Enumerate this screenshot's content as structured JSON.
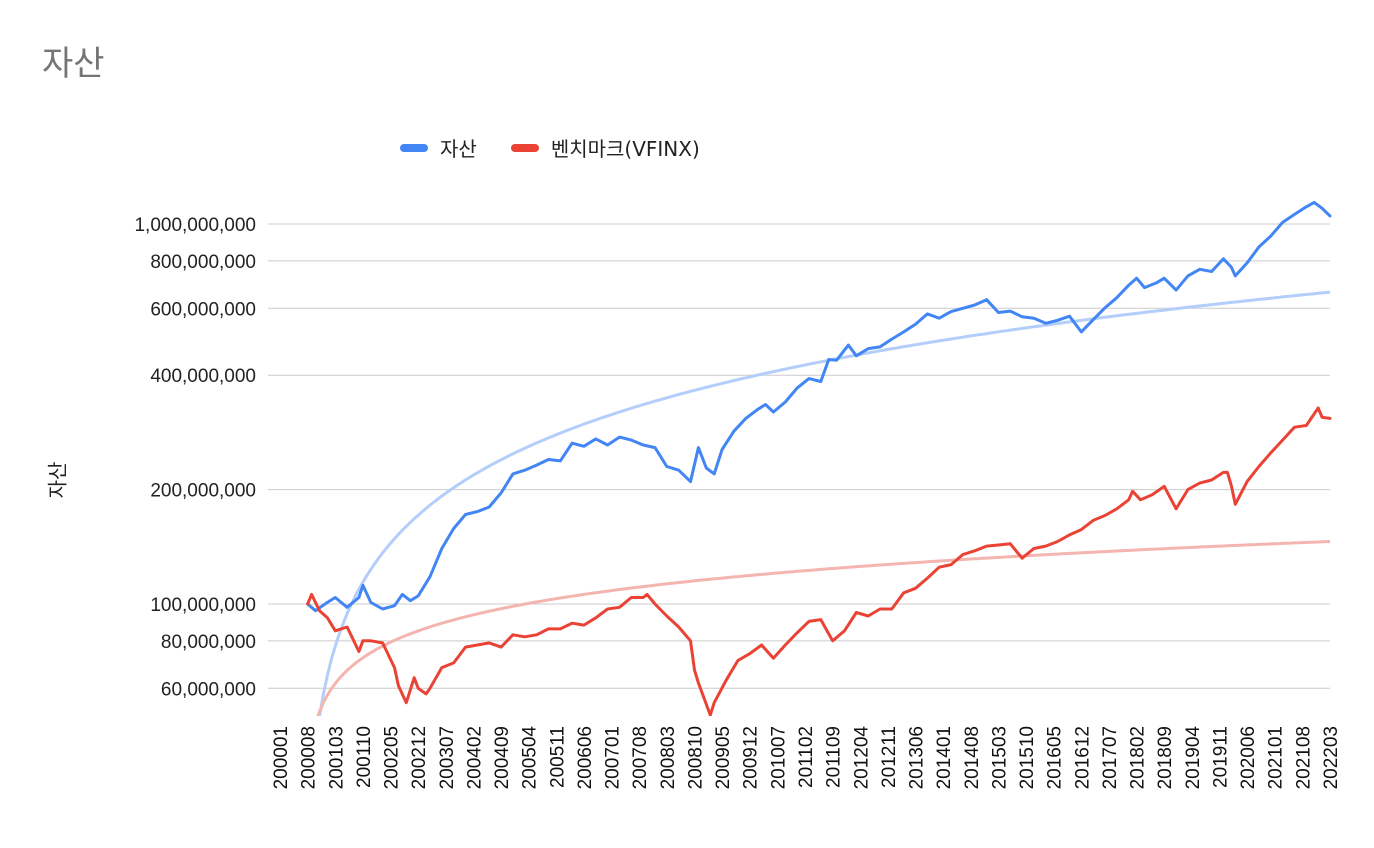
{
  "chart_data": {
    "type": "line",
    "title": "자산",
    "ylabel": "자산",
    "xlabel": "",
    "y_scale": "log",
    "ylim": [
      50000000,
      1250000000
    ],
    "y_ticks": [
      {
        "value": 60000000,
        "label": "60,000,000"
      },
      {
        "value": 80000000,
        "label": "80,000,000"
      },
      {
        "value": 100000000,
        "label": "100,000,000"
      },
      {
        "value": 200000000,
        "label": "200,000,000"
      },
      {
        "value": 400000000,
        "label": "400,000,000"
      },
      {
        "value": 600000000,
        "label": "600,000,000"
      },
      {
        "value": 800000000,
        "label": "800,000,000"
      },
      {
        "value": 1000000000,
        "label": "1,000,000,000"
      }
    ],
    "x_tick_labels": [
      "200001",
      "200008",
      "200103",
      "200110",
      "200205",
      "200212",
      "200307",
      "200402",
      "200409",
      "200504",
      "200511",
      "200606",
      "200701",
      "200708",
      "200803",
      "200810",
      "200905",
      "200912",
      "201007",
      "201102",
      "201109",
      "201204",
      "201211",
      "201306",
      "201401",
      "201408",
      "201503",
      "201510",
      "201605",
      "201612",
      "201707",
      "201802",
      "201809",
      "201904",
      "201911",
      "202006",
      "202101",
      "202108",
      "202203"
    ],
    "x_range": [
      "200001",
      "202203"
    ],
    "legend_position": "top",
    "grid": true,
    "series": [
      {
        "name": "자산",
        "color": "#4285f4",
        "trendline_color": "#b3cefb",
        "points": [
          [
            "200008",
            100000000
          ],
          [
            "200010",
            96000000
          ],
          [
            "200101",
            101000000
          ],
          [
            "200103",
            104000000
          ],
          [
            "200106",
            98000000
          ],
          [
            "200109",
            104000000
          ],
          [
            "200110",
            112000000
          ],
          [
            "200112",
            101000000
          ],
          [
            "200203",
            97000000
          ],
          [
            "200206",
            99000000
          ],
          [
            "200208",
            106000000
          ],
          [
            "200210",
            102000000
          ],
          [
            "200212",
            105000000
          ],
          [
            "200303",
            118000000
          ],
          [
            "200306",
            140000000
          ],
          [
            "200309",
            158000000
          ],
          [
            "200312",
            172000000
          ],
          [
            "200403",
            175000000
          ],
          [
            "200406",
            180000000
          ],
          [
            "200409",
            196000000
          ],
          [
            "200412",
            220000000
          ],
          [
            "200503",
            225000000
          ],
          [
            "200506",
            232000000
          ],
          [
            "200509",
            240000000
          ],
          [
            "200512",
            238000000
          ],
          [
            "200603",
            265000000
          ],
          [
            "200606",
            260000000
          ],
          [
            "200609",
            272000000
          ],
          [
            "200612",
            262000000
          ],
          [
            "200703",
            275000000
          ],
          [
            "200706",
            270000000
          ],
          [
            "200709",
            262000000
          ],
          [
            "200712",
            258000000
          ],
          [
            "200803",
            230000000
          ],
          [
            "200806",
            225000000
          ],
          [
            "200809",
            210000000
          ],
          [
            "200811",
            258000000
          ],
          [
            "200901",
            228000000
          ],
          [
            "200903",
            220000000
          ],
          [
            "200905",
            255000000
          ],
          [
            "200908",
            285000000
          ],
          [
            "200911",
            308000000
          ],
          [
            "201002",
            325000000
          ],
          [
            "201004",
            335000000
          ],
          [
            "201006",
            320000000
          ],
          [
            "201009",
            340000000
          ],
          [
            "201012",
            370000000
          ],
          [
            "201103",
            392000000
          ],
          [
            "201106",
            385000000
          ],
          [
            "201108",
            440000000
          ],
          [
            "201110",
            438000000
          ],
          [
            "201201",
            480000000
          ],
          [
            "201203",
            450000000
          ],
          [
            "201206",
            470000000
          ],
          [
            "201209",
            475000000
          ],
          [
            "201212",
            498000000
          ],
          [
            "201303",
            520000000
          ],
          [
            "201306",
            545000000
          ],
          [
            "201309",
            580000000
          ],
          [
            "201312",
            565000000
          ],
          [
            "201403",
            588000000
          ],
          [
            "201406",
            600000000
          ],
          [
            "201409",
            612000000
          ],
          [
            "201412",
            632000000
          ],
          [
            "201503",
            585000000
          ],
          [
            "201506",
            590000000
          ],
          [
            "201509",
            570000000
          ],
          [
            "201512",
            565000000
          ],
          [
            "201603",
            548000000
          ],
          [
            "201606",
            558000000
          ],
          [
            "201609",
            572000000
          ],
          [
            "201612",
            520000000
          ],
          [
            "201703",
            560000000
          ],
          [
            "201706",
            602000000
          ],
          [
            "201709",
            640000000
          ],
          [
            "201712",
            690000000
          ],
          [
            "201802",
            720000000
          ],
          [
            "201804",
            680000000
          ],
          [
            "201807",
            700000000
          ],
          [
            "201809",
            720000000
          ],
          [
            "201812",
            670000000
          ],
          [
            "201903",
            730000000
          ],
          [
            "201906",
            760000000
          ],
          [
            "201909",
            750000000
          ],
          [
            "201912",
            810000000
          ],
          [
            "202002",
            770000000
          ],
          [
            "202003",
            730000000
          ],
          [
            "202006",
            790000000
          ],
          [
            "202009",
            870000000
          ],
          [
            "202012",
            930000000
          ],
          [
            "202103",
            1010000000
          ],
          [
            "202106",
            1060000000
          ],
          [
            "202109",
            1110000000
          ],
          [
            "202111",
            1140000000
          ],
          [
            "202201",
            1100000000
          ],
          [
            "202203",
            1050000000
          ]
        ]
      },
      {
        "name": "벤치마크(VFINX)",
        "color": "#ea4335",
        "trendline_color": "#f4b5af",
        "points": [
          [
            "200008",
            100000000
          ],
          [
            "200009",
            106000000
          ],
          [
            "200011",
            96000000
          ],
          [
            "200101",
            92000000
          ],
          [
            "200103",
            85000000
          ],
          [
            "200106",
            87000000
          ],
          [
            "200109",
            75000000
          ],
          [
            "200110",
            80000000
          ],
          [
            "200112",
            80000000
          ],
          [
            "200203",
            79000000
          ],
          [
            "200206",
            68000000
          ],
          [
            "200207",
            61000000
          ],
          [
            "200209",
            55000000
          ],
          [
            "200211",
            64000000
          ],
          [
            "200212",
            60000000
          ],
          [
            "200302",
            58000000
          ],
          [
            "200303",
            60000000
          ],
          [
            "200306",
            68000000
          ],
          [
            "200309",
            70000000
          ],
          [
            "200312",
            77000000
          ],
          [
            "200403",
            78000000
          ],
          [
            "200406",
            79000000
          ],
          [
            "200409",
            77000000
          ],
          [
            "200412",
            83000000
          ],
          [
            "200503",
            82000000
          ],
          [
            "200506",
            83000000
          ],
          [
            "200509",
            86000000
          ],
          [
            "200512",
            86000000
          ],
          [
            "200603",
            89000000
          ],
          [
            "200606",
            88000000
          ],
          [
            "200609",
            92000000
          ],
          [
            "200612",
            97000000
          ],
          [
            "200703",
            98000000
          ],
          [
            "200706",
            104000000
          ],
          [
            "200709",
            104000000
          ],
          [
            "200710",
            106000000
          ],
          [
            "200712",
            100000000
          ],
          [
            "200803",
            93000000
          ],
          [
            "200806",
            87000000
          ],
          [
            "200809",
            80000000
          ],
          [
            "200810",
            67000000
          ],
          [
            "200811",
            62000000
          ],
          [
            "200902",
            51000000
          ],
          [
            "200903",
            55000000
          ],
          [
            "200906",
            63000000
          ],
          [
            "200909",
            71000000
          ],
          [
            "200912",
            74000000
          ],
          [
            "201003",
            78000000
          ],
          [
            "201006",
            72000000
          ],
          [
            "201009",
            78000000
          ],
          [
            "201012",
            84000000
          ],
          [
            "201103",
            90000000
          ],
          [
            "201106",
            91000000
          ],
          [
            "201109",
            80000000
          ],
          [
            "201112",
            85000000
          ],
          [
            "201203",
            95000000
          ],
          [
            "201206",
            93000000
          ],
          [
            "201209",
            97000000
          ],
          [
            "201212",
            97000000
          ],
          [
            "201303",
            107000000
          ],
          [
            "201306",
            110000000
          ],
          [
            "201309",
            117000000
          ],
          [
            "201312",
            125000000
          ],
          [
            "201403",
            127000000
          ],
          [
            "201406",
            135000000
          ],
          [
            "201409",
            138000000
          ],
          [
            "201412",
            142000000
          ],
          [
            "201503",
            143000000
          ],
          [
            "201506",
            144000000
          ],
          [
            "201509",
            132000000
          ],
          [
            "201512",
            140000000
          ],
          [
            "201603",
            142000000
          ],
          [
            "201606",
            146000000
          ],
          [
            "201609",
            152000000
          ],
          [
            "201612",
            157000000
          ],
          [
            "201703",
            166000000
          ],
          [
            "201706",
            171000000
          ],
          [
            "201709",
            178000000
          ],
          [
            "201712",
            188000000
          ],
          [
            "201801",
            198000000
          ],
          [
            "201803",
            188000000
          ],
          [
            "201806",
            194000000
          ],
          [
            "201809",
            204000000
          ],
          [
            "201812",
            178000000
          ],
          [
            "201903",
            200000000
          ],
          [
            "201906",
            208000000
          ],
          [
            "201909",
            212000000
          ],
          [
            "201912",
            222000000
          ],
          [
            "202001",
            222000000
          ],
          [
            "202002",
            205000000
          ],
          [
            "202003",
            183000000
          ],
          [
            "202006",
            210000000
          ],
          [
            "202009",
            230000000
          ],
          [
            "202012",
            250000000
          ],
          [
            "202103",
            270000000
          ],
          [
            "202106",
            292000000
          ],
          [
            "202109",
            295000000
          ],
          [
            "202112",
            328000000
          ],
          [
            "202201",
            310000000
          ],
          [
            "202203",
            308000000
          ]
        ]
      }
    ]
  }
}
